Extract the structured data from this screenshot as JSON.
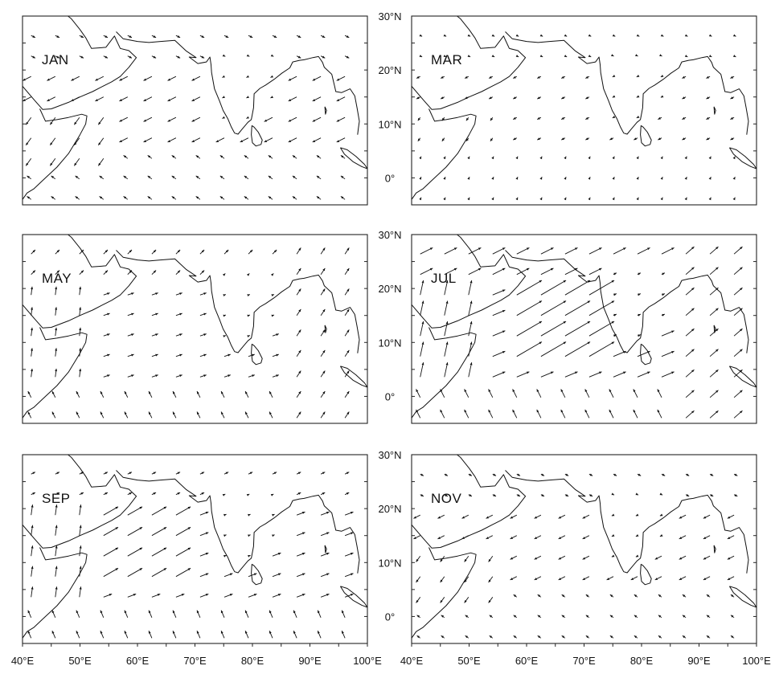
{
  "figure": {
    "panels": [
      {
        "id": "jan",
        "label": "JAN",
        "month": 1
      },
      {
        "id": "mar",
        "label": "MAR",
        "month": 3
      },
      {
        "id": "may",
        "label": "MAY",
        "month": 5
      },
      {
        "id": "jul",
        "label": "JUL",
        "month": 7
      },
      {
        "id": "sep",
        "label": "SEP",
        "month": 9
      },
      {
        "id": "nov",
        "label": "NOV",
        "month": 11
      }
    ],
    "lat_labels": [
      "30°N",
      "20°N",
      "10°N",
      "0°"
    ],
    "lon_labels": [
      "40°E",
      "50°E",
      "60°E",
      "70°E",
      "80°E",
      "90°E",
      "100°E"
    ],
    "lat_range": [
      -5,
      30
    ],
    "lon_range": [
      40,
      100
    ],
    "map_type": "monthly mean surface wind vector field over the Arabian Sea, Indian subcontinent and Bay of Bengal"
  }
}
